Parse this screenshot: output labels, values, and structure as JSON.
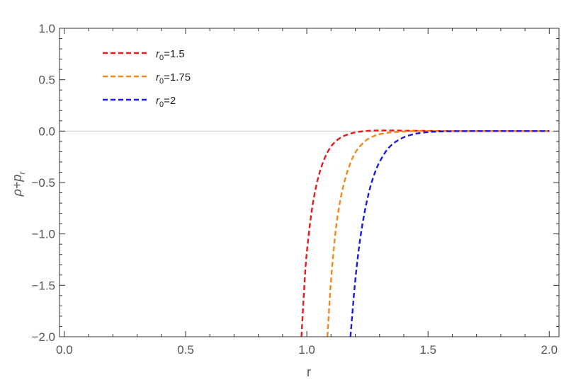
{
  "chart_data": {
    "type": "line",
    "title": "",
    "xlabel": "r",
    "ylabel": "ρ+p_r",
    "ylabel_main": "ρ+p",
    "ylabel_sub": "r",
    "xlim": [
      -0.02,
      2.04
    ],
    "ylim": [
      -2.0,
      1.0
    ],
    "xticks": [
      0.0,
      0.5,
      1.0,
      1.5,
      2.0
    ],
    "xtick_labels": [
      "0.0",
      "0.5",
      "1.0",
      "1.5",
      "2.0"
    ],
    "yticks": [
      1.0,
      0.5,
      0.0,
      -0.5,
      -1.0,
      -1.5,
      -2.0
    ],
    "ytick_labels": [
      "1.0",
      "0.5",
      "0.0",
      "−0.5",
      "−1.0",
      "−1.5",
      "−2.0"
    ],
    "grid": false,
    "zero_line": true,
    "legend_position": "top-left",
    "series": [
      {
        "name": "r0=1.5",
        "label_main": "r",
        "label_sub": "0",
        "label_rest": "=1.5",
        "color": "#e8191b",
        "style": "dashed",
        "x": [
          0.978,
          0.99,
          1.0,
          1.02,
          1.04,
          1.06,
          1.08,
          1.1,
          1.12,
          1.15,
          1.2,
          1.25,
          1.3,
          1.35,
          1.4,
          1.5,
          1.6,
          1.8,
          2.0
        ],
        "y": [
          -2.0,
          -1.5,
          -1.18,
          -0.78,
          -0.52,
          -0.35,
          -0.23,
          -0.15,
          -0.098,
          -0.05,
          -0.012,
          0.002,
          0.006,
          0.006,
          0.004,
          0.002,
          0.0,
          0.0,
          0.0
        ]
      },
      {
        "name": "r0=1.75",
        "label_main": "r",
        "label_sub": "0",
        "label_rest": "=1.75",
        "color": "#f28a1a",
        "style": "dashed",
        "x": [
          1.085,
          1.1,
          1.12,
          1.14,
          1.16,
          1.18,
          1.2,
          1.22,
          1.25,
          1.28,
          1.3,
          1.35,
          1.4,
          1.45,
          1.5,
          1.6,
          1.8,
          2.0
        ],
        "y": [
          -2.0,
          -1.45,
          -0.95,
          -0.65,
          -0.45,
          -0.31,
          -0.21,
          -0.145,
          -0.08,
          -0.045,
          -0.03,
          -0.012,
          -0.004,
          0.0,
          0.0,
          0.0,
          0.0,
          0.0
        ]
      },
      {
        "name": "r0=2",
        "label_main": "r",
        "label_sub": "0",
        "label_rest": "=2",
        "color": "#1a1adc",
        "style": "dashed",
        "x": [
          1.18,
          1.2,
          1.22,
          1.24,
          1.26,
          1.28,
          1.3,
          1.33,
          1.36,
          1.4,
          1.45,
          1.5,
          1.55,
          1.6,
          1.7,
          1.8,
          2.0
        ],
        "y": [
          -2.0,
          -1.45,
          -1.05,
          -0.77,
          -0.56,
          -0.41,
          -0.3,
          -0.185,
          -0.115,
          -0.06,
          -0.025,
          -0.01,
          -0.004,
          -0.001,
          0.0,
          0.0,
          0.0
        ]
      }
    ]
  }
}
